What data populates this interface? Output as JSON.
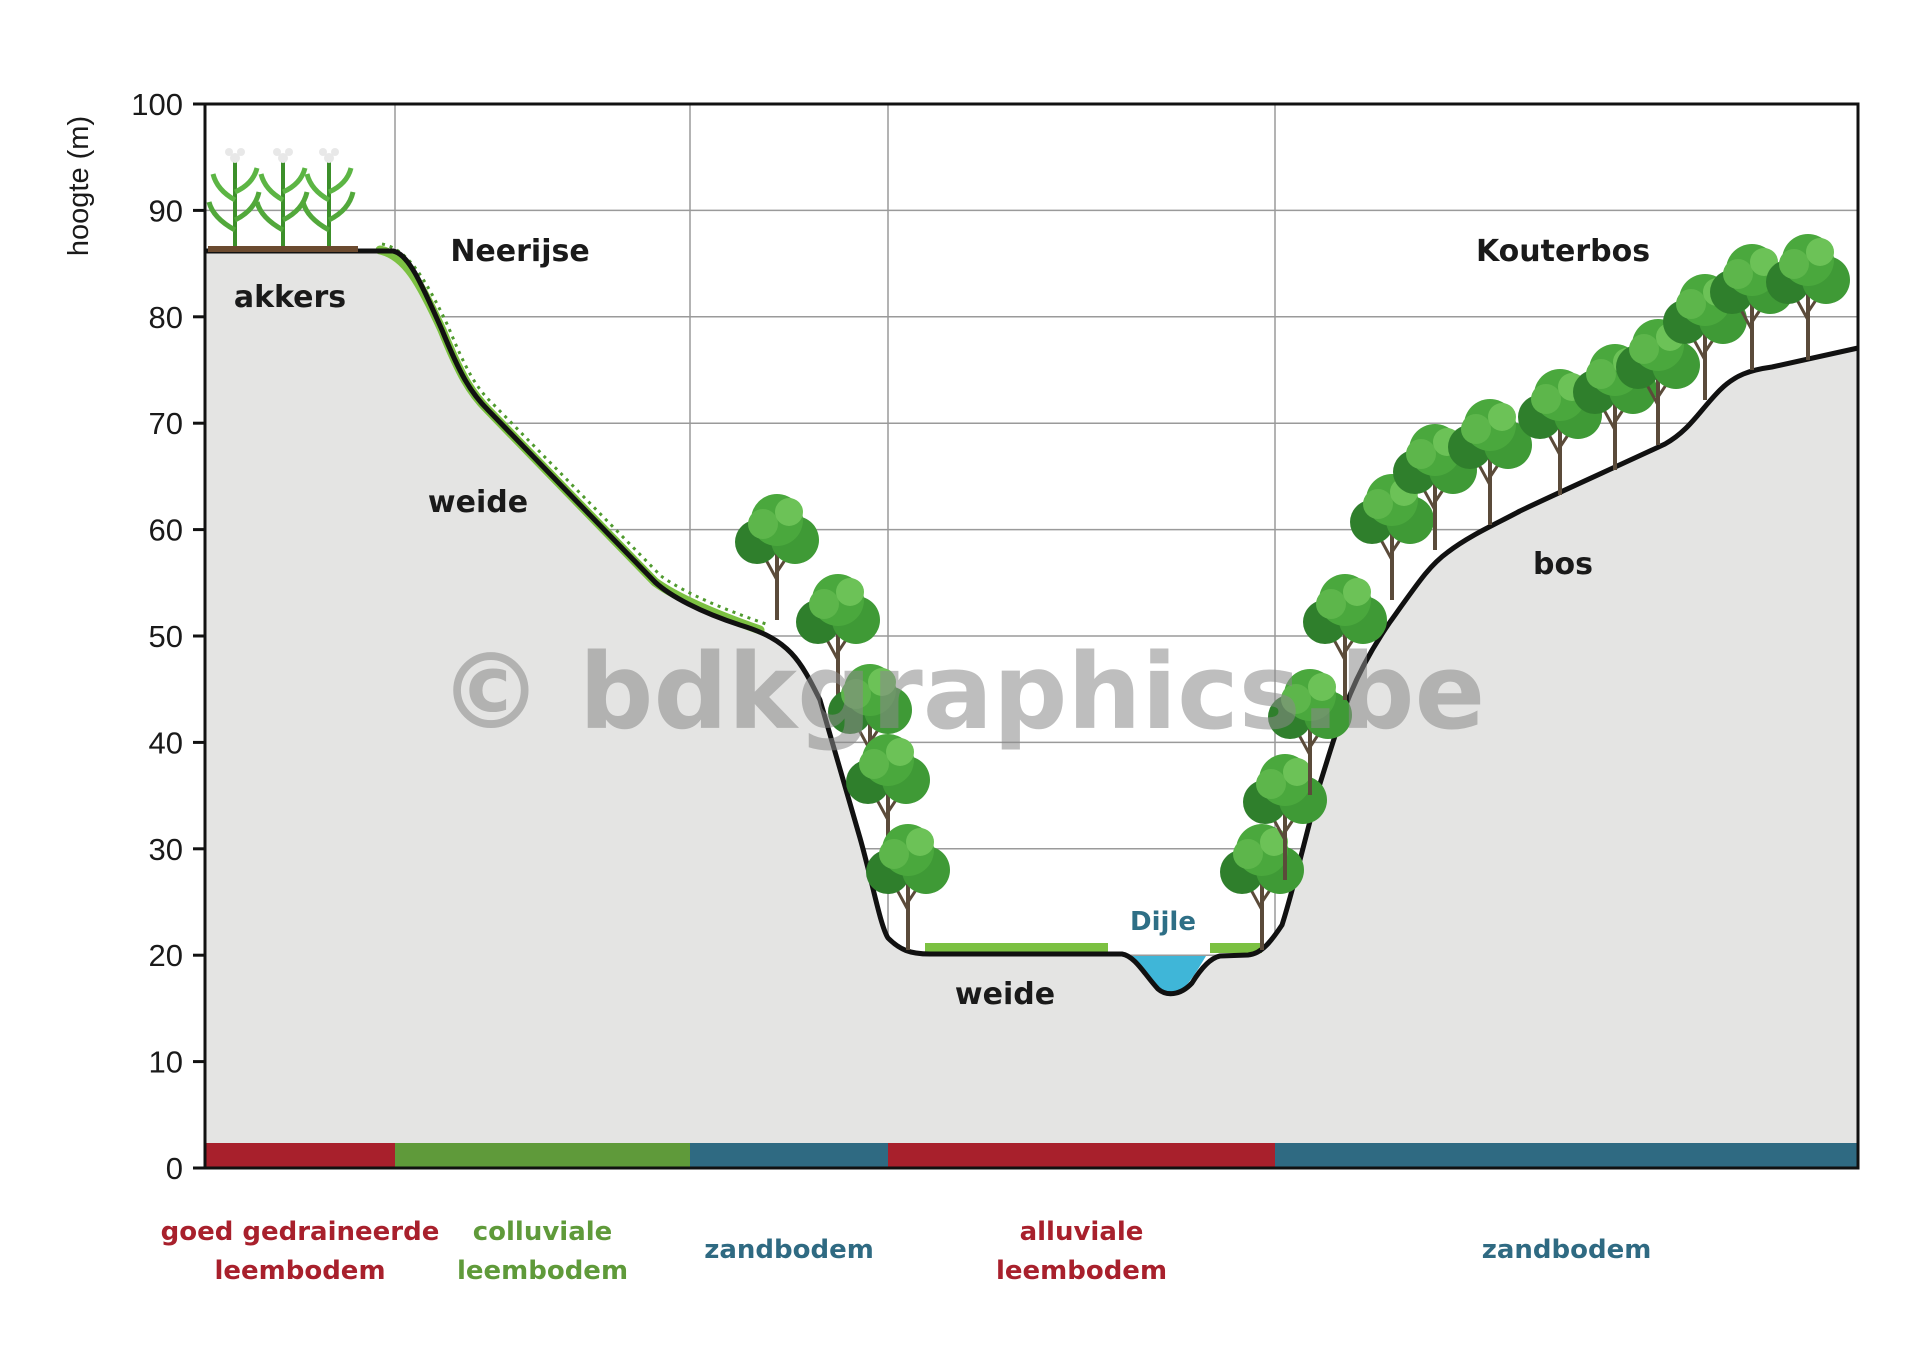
{
  "y_axis": {
    "title": "hoogte (m)",
    "ticks": [
      "0",
      "10",
      "20",
      "30",
      "40",
      "50",
      "60",
      "70",
      "80",
      "90",
      "100"
    ]
  },
  "zones": {
    "neerijse": "Neerijse",
    "kouterbos": "Kouterbos"
  },
  "landuse": {
    "akkers": "akkers",
    "weide_slope": "weide",
    "weide_valley": "weide",
    "bos": "bos",
    "river": "Dijle"
  },
  "soils": [
    {
      "line1": "goed gedraineerde",
      "line2": "leembodem",
      "color": "#a8202c"
    },
    {
      "line1": "colluviale",
      "line2": "leembodem",
      "color": "#5f9a3a"
    },
    {
      "line1": "zandbodem",
      "line2": "",
      "color": "#2f6a82"
    },
    {
      "line1": "alluviale",
      "line2": "leembodem",
      "color": "#a8202c"
    },
    {
      "line1": "zandbodem",
      "line2": "",
      "color": "#2f6a82"
    }
  ],
  "watermark": "© bdkgraphics.be",
  "colors": {
    "terrain": "#e4e4e3",
    "grass": "#7cc142",
    "tree": "#3f9a36",
    "water": "#3fb6d8",
    "river_label": "#2e6f86"
  }
}
